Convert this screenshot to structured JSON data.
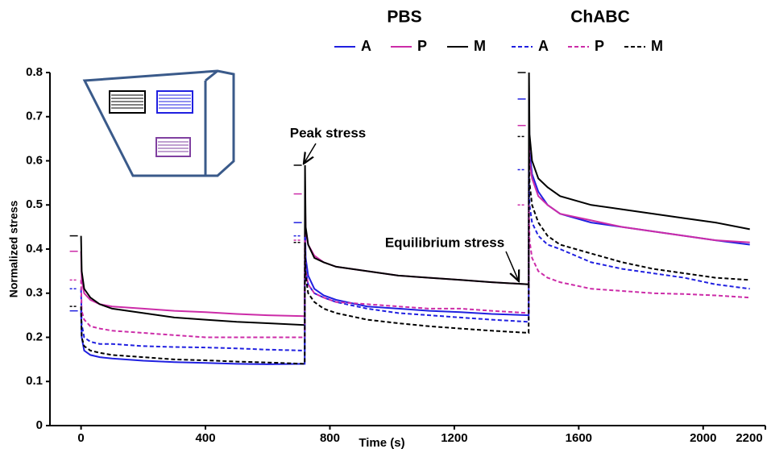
{
  "chart_data": {
    "type": "line",
    "xlabel": "Time (s)",
    "ylabel": "Normalized stress",
    "xlim": [
      -100,
      2200
    ],
    "xticks": [
      0,
      400,
      800,
      1200,
      1600,
      2000,
      2200
    ],
    "ylim": [
      0,
      0.8
    ],
    "yticks": [
      0,
      0.1,
      0.2,
      0.3,
      0.4,
      0.5,
      0.6,
      0.7,
      0.8
    ],
    "x": [
      0,
      2,
      10,
      30,
      60,
      100,
      200,
      300,
      400,
      500,
      600,
      719,
      720,
      722,
      730,
      750,
      780,
      820,
      920,
      1020,
      1120,
      1220,
      1320,
      1439,
      1440,
      1442,
      1450,
      1470,
      1500,
      1540,
      1640,
      1740,
      1840,
      1940,
      2040,
      2150
    ],
    "series": [
      {
        "name": "A",
        "group": "PBS",
        "color": "#2020e0",
        "dashed": false,
        "values": [
          0.26,
          0.2,
          0.17,
          0.16,
          0.155,
          0.152,
          0.147,
          0.144,
          0.142,
          0.14,
          0.139,
          0.14,
          0.46,
          0.38,
          0.34,
          0.31,
          0.295,
          0.285,
          0.27,
          0.265,
          0.26,
          0.257,
          0.253,
          0.25,
          0.74,
          0.62,
          0.57,
          0.53,
          0.5,
          0.48,
          0.46,
          0.45,
          0.44,
          0.43,
          0.42,
          0.41
        ]
      },
      {
        "name": "P",
        "group": "PBS",
        "color": "#cc2ca8",
        "dashed": false,
        "values": [
          0.395,
          0.33,
          0.3,
          0.285,
          0.275,
          0.27,
          0.265,
          0.26,
          0.257,
          0.253,
          0.25,
          0.248,
          0.525,
          0.44,
          0.41,
          0.385,
          0.37,
          0.36,
          0.35,
          0.34,
          0.335,
          0.33,
          0.325,
          0.32,
          0.68,
          0.6,
          0.56,
          0.52,
          0.5,
          0.48,
          0.465,
          0.45,
          0.44,
          0.43,
          0.42,
          0.415
        ]
      },
      {
        "name": "M",
        "group": "PBS",
        "color": "#000000",
        "dashed": false,
        "values": [
          0.43,
          0.35,
          0.31,
          0.29,
          0.275,
          0.265,
          0.255,
          0.245,
          0.24,
          0.235,
          0.232,
          0.228,
          0.59,
          0.45,
          0.41,
          0.38,
          0.37,
          0.36,
          0.35,
          0.34,
          0.335,
          0.33,
          0.325,
          0.32,
          0.8,
          0.66,
          0.6,
          0.56,
          0.54,
          0.52,
          0.5,
          0.49,
          0.48,
          0.47,
          0.46,
          0.445
        ]
      },
      {
        "name": "A",
        "group": "ChABC",
        "color": "#2020e0",
        "dashed": true,
        "values": [
          0.31,
          0.23,
          0.2,
          0.19,
          0.185,
          0.185,
          0.18,
          0.178,
          0.177,
          0.175,
          0.172,
          0.17,
          0.43,
          0.35,
          0.32,
          0.3,
          0.29,
          0.28,
          0.265,
          0.255,
          0.25,
          0.245,
          0.24,
          0.235,
          0.58,
          0.5,
          0.46,
          0.43,
          0.41,
          0.4,
          0.37,
          0.355,
          0.345,
          0.335,
          0.32,
          0.31
        ]
      },
      {
        "name": "P",
        "group": "ChABC",
        "color": "#cc2ca8",
        "dashed": true,
        "values": [
          0.33,
          0.26,
          0.24,
          0.225,
          0.22,
          0.215,
          0.21,
          0.205,
          0.2,
          0.2,
          0.2,
          0.2,
          0.42,
          0.35,
          0.32,
          0.3,
          0.29,
          0.28,
          0.275,
          0.27,
          0.265,
          0.265,
          0.26,
          0.255,
          0.5,
          0.42,
          0.38,
          0.35,
          0.335,
          0.325,
          0.31,
          0.305,
          0.3,
          0.298,
          0.295,
          0.29
        ]
      },
      {
        "name": "M",
        "group": "ChABC",
        "color": "#000000",
        "dashed": true,
        "values": [
          0.27,
          0.2,
          0.18,
          0.17,
          0.165,
          0.16,
          0.155,
          0.15,
          0.148,
          0.145,
          0.143,
          0.14,
          0.415,
          0.34,
          0.3,
          0.28,
          0.265,
          0.255,
          0.24,
          0.232,
          0.225,
          0.22,
          0.215,
          0.21,
          0.655,
          0.55,
          0.5,
          0.46,
          0.43,
          0.41,
          0.39,
          0.37,
          0.355,
          0.345,
          0.335,
          0.33
        ]
      }
    ],
    "annotations": [
      "Peak stress",
      "Equilibrium stress"
    ],
    "inset": {
      "labels": [
        "M",
        "A",
        "P"
      ]
    }
  }
}
